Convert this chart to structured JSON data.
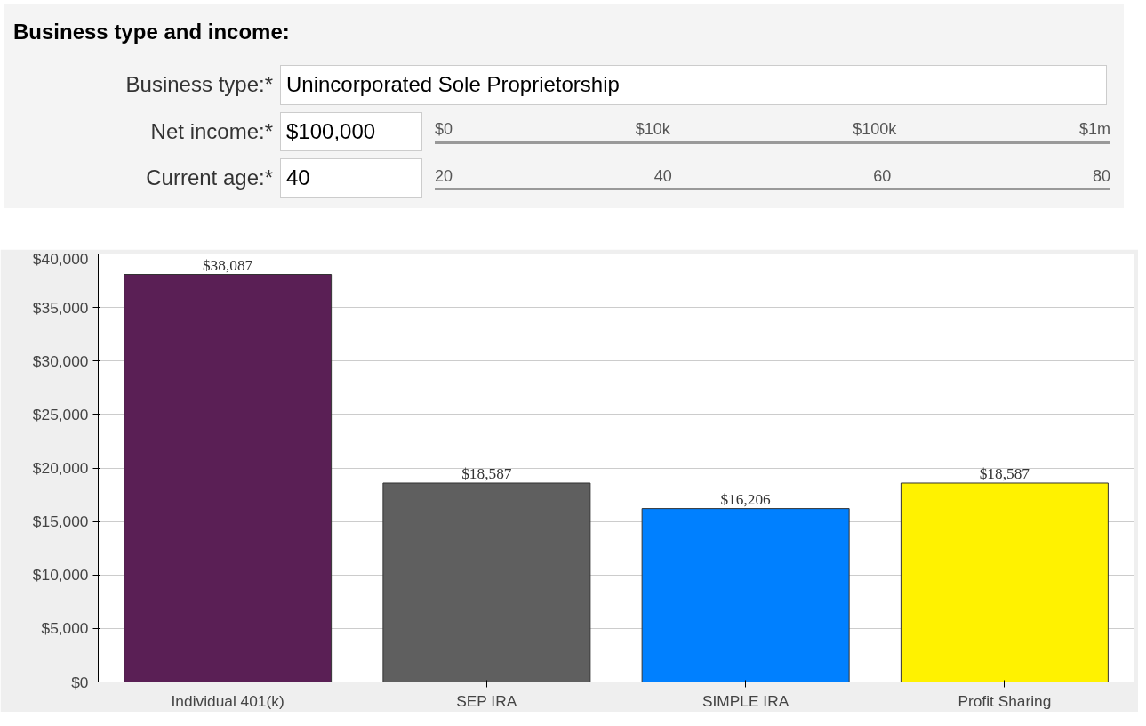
{
  "chart_data": {
    "type": "bar",
    "title": "Business type and income:",
    "annotations": [
      "Business type:*",
      "Unincorporated Sole Proprietorship",
      "Net income:*",
      "$100,000",
      "Current age:*",
      "40",
      "$0",
      "$10k",
      "$100k",
      "$1m",
      "20",
      "40",
      "60",
      "80"
    ],
    "categories": [
      "Individual 401(k)",
      "SEP IRA",
      "SIMPLE IRA",
      "Profit Sharing"
    ],
    "values": [
      38087,
      18587,
      16206,
      18587
    ],
    "colors": [
      "#5a1f55",
      "#5f5f5f",
      "#0080ff",
      "#fff200"
    ],
    "value_labels": [
      "$38,087",
      "$18,587",
      "$16,206",
      "$18,587"
    ],
    "ylim": [
      0,
      40000
    ],
    "yticks": [
      {
        "value": 0,
        "label": "$0"
      },
      {
        "value": 5000,
        "label": "$5,000"
      },
      {
        "value": 10000,
        "label": "$10,000"
      },
      {
        "value": 15000,
        "label": "$15,000"
      },
      {
        "value": 20000,
        "label": "$20,000"
      },
      {
        "value": 25000,
        "label": "$25,000"
      },
      {
        "value": 30000,
        "label": "$30,000"
      },
      {
        "value": 35000,
        "label": "$35,000"
      },
      {
        "value": 40000,
        "label": "$40,000"
      }
    ],
    "grid": "y"
  }
}
